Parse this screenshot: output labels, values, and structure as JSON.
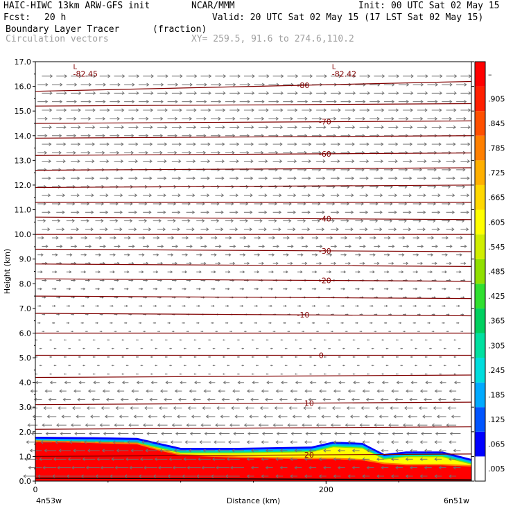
{
  "header": {
    "model": "HAIC-HIWC 13km ARW-GFS init",
    "org": "NCAR/MMM",
    "init": "Init: 00 UTC Sat 02 May 15",
    "fcst_label": "Fcst:",
    "fcst_value": "20 h",
    "valid": "Valid: 20 UTC Sat 02 May 15 (17 LST Sat 02 May 15)",
    "field": "Boundary Layer Tracer",
    "units": "(fraction)",
    "field2": "Circulation vectors",
    "xy": "XY= 259.5, 91.6 to 274.6,110.2"
  },
  "chart_data": {
    "type": "heatmap",
    "xlabel": "Distance (km)",
    "ylabel": "Height (km)",
    "xlim": [
      0,
      300
    ],
    "ylim": [
      0.0,
      17.0
    ],
    "x_ticks": [
      {
        "value": 0,
        "label": "0"
      },
      {
        "value": 200,
        "label": "200"
      }
    ],
    "x_end_labels": {
      "left": "4n53w",
      "right": "6n51w"
    },
    "y_ticks": [
      "0.0",
      "1.0",
      "2.0",
      "3.0",
      "4.0",
      "5.0",
      "6.0",
      "7.0",
      "8.0",
      "9.0",
      "10.0",
      "11.0",
      "12.0",
      "13.0",
      "14.0",
      "15.0",
      "16.0",
      "17.0"
    ],
    "colorbar": {
      "labels": [
        ".005",
        ".065",
        ".125",
        ".185",
        ".245",
        ".305",
        ".365",
        ".425",
        ".485",
        ".545",
        ".605",
        ".665",
        ".725",
        ".785",
        ".845",
        ".905",
        "–"
      ],
      "colors": [
        "#ffffff",
        "#0000ff",
        "#0055ff",
        "#00aaff",
        "#00dddd",
        "#00e0a0",
        "#00d060",
        "#30e030",
        "#90e000",
        "#d0ee00",
        "#ffff00",
        "#ffd800",
        "#ffb000",
        "#ff8000",
        "#ff5000",
        "#ff2000",
        "#ff0000"
      ]
    },
    "tracer_top_profile": [
      {
        "x": 0,
        "top": 1.8,
        "core": 1.65
      },
      {
        "x": 40,
        "top": 1.78,
        "core": 1.6
      },
      {
        "x": 70,
        "top": 1.75,
        "core": 1.55
      },
      {
        "x": 85,
        "top": 1.55,
        "core": 1.3
      },
      {
        "x": 100,
        "top": 1.35,
        "core": 1.1
      },
      {
        "x": 140,
        "top": 1.35,
        "core": 1.0
      },
      {
        "x": 190,
        "top": 1.4,
        "core": 0.95
      },
      {
        "x": 205,
        "top": 1.6,
        "core": 0.95
      },
      {
        "x": 225,
        "top": 1.55,
        "core": 0.9
      },
      {
        "x": 240,
        "top": 1.1,
        "core": 0.75
      },
      {
        "x": 255,
        "top": 1.2,
        "core": 0.7
      },
      {
        "x": 280,
        "top": 1.2,
        "core": 0.7
      },
      {
        "x": 300,
        "top": 0.9,
        "core": 0.65
      }
    ],
    "temperature_contours": [
      {
        "label": "-80",
        "left": 15.8,
        "right": 16.2,
        "label_x": 180
      },
      {
        "label": "",
        "left": 15.2,
        "right": 15.3,
        "label_x": null
      },
      {
        "label": "-70",
        "left": 14.5,
        "right": 14.6,
        "label_x": 195
      },
      {
        "label": "",
        "left": 13.9,
        "right": 14.0,
        "label_x": null
      },
      {
        "label": "-60",
        "left": 13.2,
        "right": 13.3,
        "label_x": 195
      },
      {
        "label": "",
        "left": 12.6,
        "right": 12.7,
        "label_x": null
      },
      {
        "label": "",
        "left": 11.9,
        "right": 12.0,
        "label_x": null
      },
      {
        "label": "",
        "left": 11.3,
        "right": 11.3,
        "label_x": null
      },
      {
        "label": "-40",
        "left": 10.7,
        "right": 10.6,
        "label_x": 195
      },
      {
        "label": "",
        "left": 10.0,
        "right": 10.0,
        "label_x": null
      },
      {
        "label": "-30",
        "left": 9.4,
        "right": 9.3,
        "label_x": 195
      },
      {
        "label": "",
        "left": 8.8,
        "right": 8.7,
        "label_x": null
      },
      {
        "label": "-20",
        "left": 8.2,
        "right": 8.1,
        "label_x": 195
      },
      {
        "label": "",
        "left": 7.5,
        "right": 7.4,
        "label_x": null
      },
      {
        "label": "-10",
        "left": 6.8,
        "right": 6.7,
        "label_x": 180
      },
      {
        "label": "",
        "left": 6.0,
        "right": 6.0,
        "label_x": null
      },
      {
        "label": "0",
        "left": 5.1,
        "right": 5.1,
        "label_x": 195
      },
      {
        "label": "",
        "left": 4.2,
        "right": 4.3,
        "label_x": null
      },
      {
        "label": "10",
        "left": 3.1,
        "right": 3.2,
        "label_x": 185
      },
      {
        "label": "",
        "left": 2.1,
        "right": 2.2,
        "label_x": null
      },
      {
        "label": "20",
        "left": 1.0,
        "right": 1.1,
        "label_x": 185
      }
    ],
    "low_labels": [
      {
        "mark": "L",
        "value": "-82.45",
        "x": 26,
        "y": 16.7
      },
      {
        "mark": "L",
        "value": "-82.42",
        "x": 204,
        "y": 16.7
      }
    ],
    "contour_color": "#800000",
    "vector_color": "#707070"
  }
}
